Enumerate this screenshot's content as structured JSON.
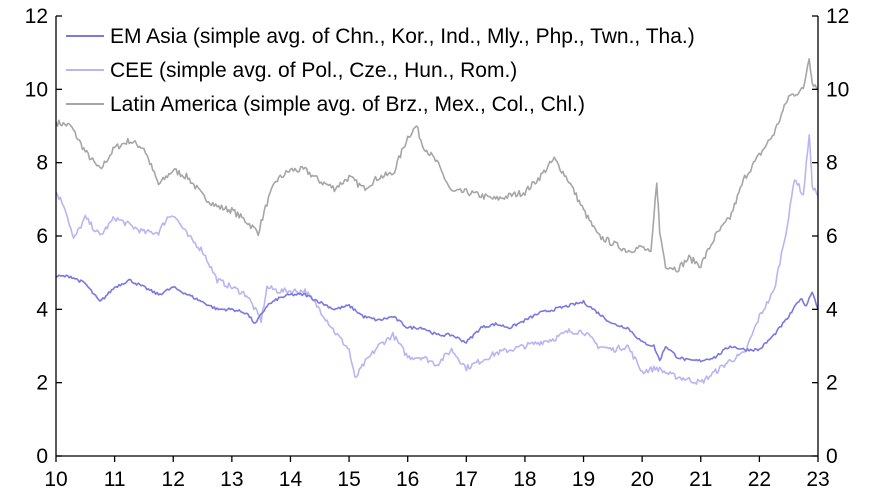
{
  "colors": {
    "em_asia": "#7a78e0",
    "cee": "#b8b6f2",
    "latam": "#a6a6a6",
    "axis": "#000000",
    "background": "#ffffff"
  },
  "chart_data": {
    "type": "line",
    "title": "",
    "xlabel": "",
    "ylabel": "",
    "xlim": [
      10,
      23
    ],
    "ylim": [
      0,
      12
    ],
    "y2lim": [
      0,
      12
    ],
    "x_ticks": [
      10,
      11,
      12,
      13,
      14,
      15,
      16,
      17,
      18,
      19,
      20,
      21,
      22,
      23
    ],
    "x_tick_labels": [
      "10",
      "11",
      "12",
      "13",
      "14",
      "15",
      "16",
      "17",
      "18",
      "19",
      "20",
      "21",
      "22",
      "23"
    ],
    "y_ticks": [
      0,
      2,
      4,
      6,
      8,
      10,
      12
    ],
    "y_tick_labels": [
      "0",
      "2",
      "4",
      "6",
      "8",
      "10",
      "12"
    ],
    "grid": false,
    "legend_position": "top-left",
    "series": [
      {
        "key": "em_asia",
        "name": "EM Asia (simple avg. of Chn., Kor., Ind., Mly., Php., Twn., Tha.)",
        "color": "#7a78e0",
        "x": [
          10.0,
          10.25,
          10.5,
          10.75,
          11.0,
          11.25,
          11.5,
          11.75,
          12.0,
          12.25,
          12.5,
          12.75,
          13.0,
          13.25,
          13.4,
          13.6,
          13.8,
          14.0,
          14.25,
          14.5,
          14.75,
          15.0,
          15.25,
          15.5,
          15.75,
          16.0,
          16.25,
          16.5,
          16.75,
          17.0,
          17.25,
          17.5,
          17.75,
          18.0,
          18.25,
          18.5,
          18.75,
          19.0,
          19.25,
          19.5,
          19.75,
          20.0,
          20.2,
          20.3,
          20.4,
          20.6,
          20.8,
          21.0,
          21.25,
          21.5,
          21.75,
          22.0,
          22.25,
          22.5,
          22.7,
          22.8,
          22.9,
          23.0
        ],
        "y": [
          4.9,
          4.9,
          4.7,
          4.2,
          4.6,
          4.8,
          4.6,
          4.4,
          4.6,
          4.4,
          4.2,
          4.0,
          4.0,
          3.9,
          3.6,
          4.1,
          4.3,
          4.4,
          4.4,
          4.2,
          4.0,
          4.1,
          3.8,
          3.7,
          3.8,
          3.5,
          3.5,
          3.3,
          3.3,
          3.1,
          3.5,
          3.6,
          3.5,
          3.7,
          3.9,
          4.0,
          4.1,
          4.2,
          3.9,
          3.6,
          3.5,
          3.1,
          3.0,
          2.6,
          3.0,
          2.7,
          2.6,
          2.6,
          2.7,
          3.0,
          2.9,
          2.9,
          3.3,
          3.8,
          4.3,
          4.1,
          4.5,
          4.0
        ]
      },
      {
        "key": "cee",
        "name": "CEE (simple avg. of Pol., Cze., Hun., Rom.)",
        "color": "#b8b6f2",
        "x": [
          10.0,
          10.15,
          10.3,
          10.5,
          10.75,
          11.0,
          11.25,
          11.5,
          11.75,
          11.9,
          12.0,
          12.25,
          12.5,
          12.75,
          13.0,
          13.25,
          13.5,
          13.6,
          13.8,
          14.0,
          14.25,
          14.5,
          14.75,
          15.0,
          15.1,
          15.25,
          15.5,
          15.75,
          16.0,
          16.25,
          16.5,
          16.75,
          17.0,
          17.25,
          17.5,
          17.75,
          18.0,
          18.25,
          18.5,
          18.75,
          19.0,
          19.25,
          19.5,
          19.75,
          20.0,
          20.25,
          20.5,
          20.75,
          21.0,
          21.25,
          21.5,
          21.75,
          22.0,
          22.25,
          22.5,
          22.6,
          22.75,
          22.85,
          22.9,
          23.0
        ],
        "y": [
          7.2,
          6.8,
          5.9,
          6.5,
          6.0,
          6.5,
          6.3,
          6.1,
          6.1,
          6.5,
          6.6,
          6.0,
          5.6,
          4.8,
          4.6,
          4.4,
          3.7,
          4.6,
          4.5,
          4.5,
          4.5,
          4.0,
          3.4,
          2.9,
          2.1,
          2.5,
          3.0,
          3.3,
          2.7,
          2.7,
          2.5,
          2.9,
          2.4,
          2.6,
          2.8,
          2.9,
          3.0,
          3.1,
          3.2,
          3.4,
          3.4,
          3.0,
          2.9,
          3.0,
          2.3,
          2.4,
          2.2,
          2.1,
          2.0,
          2.3,
          2.6,
          2.8,
          3.8,
          4.5,
          6.5,
          7.6,
          7.1,
          8.8,
          7.4,
          7.1
        ]
      },
      {
        "key": "latam",
        "name": "Latin America (simple avg. of Brz., Mex., Col., Chl.)",
        "color": "#a6a6a6",
        "x": [
          10.0,
          10.25,
          10.5,
          10.75,
          11.0,
          11.25,
          11.5,
          11.75,
          12.0,
          12.25,
          12.5,
          12.75,
          13.0,
          13.25,
          13.45,
          13.6,
          13.75,
          14.0,
          14.25,
          14.5,
          14.75,
          15.0,
          15.25,
          15.5,
          15.75,
          16.0,
          16.15,
          16.25,
          16.5,
          16.75,
          17.0,
          17.25,
          17.5,
          17.75,
          18.0,
          18.25,
          18.5,
          18.75,
          19.0,
          19.25,
          19.5,
          19.75,
          20.0,
          20.15,
          20.25,
          20.3,
          20.4,
          20.6,
          20.8,
          21.0,
          21.25,
          21.5,
          21.75,
          22.0,
          22.25,
          22.5,
          22.75,
          22.85,
          22.9,
          23.0
        ],
        "y": [
          9.1,
          9.0,
          8.3,
          7.8,
          8.4,
          8.6,
          8.4,
          7.4,
          7.8,
          7.6,
          7.1,
          6.8,
          6.7,
          6.4,
          6.1,
          6.9,
          7.5,
          7.8,
          7.8,
          7.5,
          7.3,
          7.6,
          7.3,
          7.6,
          7.7,
          8.7,
          9.0,
          8.5,
          8.0,
          7.2,
          7.2,
          7.1,
          7.0,
          7.1,
          7.2,
          7.6,
          8.1,
          7.5,
          6.7,
          6.0,
          5.8,
          5.6,
          5.7,
          5.5,
          7.5,
          6.1,
          5.2,
          5.1,
          5.4,
          5.2,
          6.0,
          6.5,
          7.6,
          8.2,
          8.8,
          9.8,
          10.0,
          10.9,
          10.2,
          10.0
        ]
      }
    ]
  }
}
